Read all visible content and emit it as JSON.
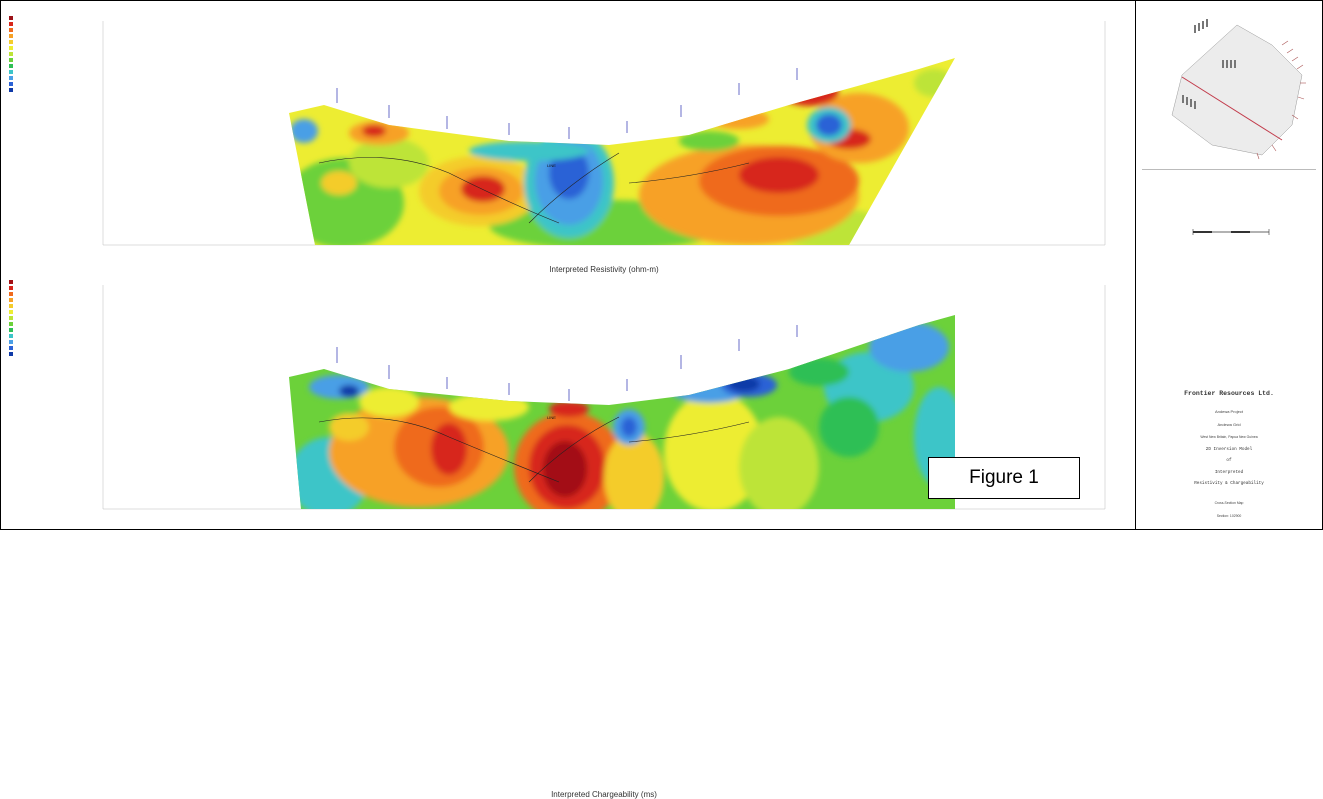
{
  "figure_label": "Figure 1",
  "panels": [
    {
      "caption": "Interpreted Resistivity (ohm-m)",
      "legend": {
        "colors": [
          "#9b1218",
          "#d7261b",
          "#ef6a1e",
          "#f7a126",
          "#f4cc2c",
          "#eded32",
          "#bde437",
          "#6cd13a",
          "#2fbf55",
          "#3cc5c8",
          "#4a9fe6",
          "#2c62d6",
          "#0f3aa8"
        ]
      },
      "stations": 9
    },
    {
      "caption": "Interpreted Chargeability (ms)",
      "legend": {
        "colors": [
          "#a30f14",
          "#d7261b",
          "#ef6a1e",
          "#f7a126",
          "#f4cc2c",
          "#eded32",
          "#bde437",
          "#6cd13a",
          "#2fbf55",
          "#3cc5c8",
          "#4a9fe6",
          "#2c62d6",
          "#0f3aa8"
        ]
      },
      "stations": 9
    }
  ],
  "sidebar": {
    "company": "Frontier Resources Ltd.",
    "project": "Andewa Project",
    "section": "Andewa Grid",
    "location": "West New Britain, Papua New Guinea",
    "model_title_1": "2D Inversion Model",
    "model_title_2": "of",
    "model_title_3": "Interpreted",
    "model_title_4": "Resistivity & Chargeability",
    "cross_section": "Cross-Section Map",
    "section_id": "Section: 102900"
  },
  "chart_data": [
    {
      "type": "heatmap",
      "title": "Interpreted Resistivity (ohm-m)",
      "xlabel": "Interpreted Resistivity (ohm-m)",
      "description_colors": [
        "#9b1218",
        "#d7261b",
        "#ef6a1e",
        "#f7a126",
        "#f4cc2c",
        "#eded32",
        "#bde437",
        "#6cd13a",
        "#2fbf55",
        "#3cc5c8",
        "#4a9fe6",
        "#2c62d6",
        "#0f3aa8"
      ]
    },
    {
      "type": "heatmap",
      "title": "Interpreted Chargeability (ms)",
      "xlabel": "Interpreted Chargeability (ms)",
      "description_colors": [
        "#a30f14",
        "#d7261b",
        "#ef6a1e",
        "#f7a126",
        "#f4cc2c",
        "#eded32",
        "#bde437",
        "#6cd13a",
        "#2fbf55",
        "#3cc5c8",
        "#4a9fe6",
        "#2c62d6",
        "#0f3aa8"
      ]
    }
  ]
}
